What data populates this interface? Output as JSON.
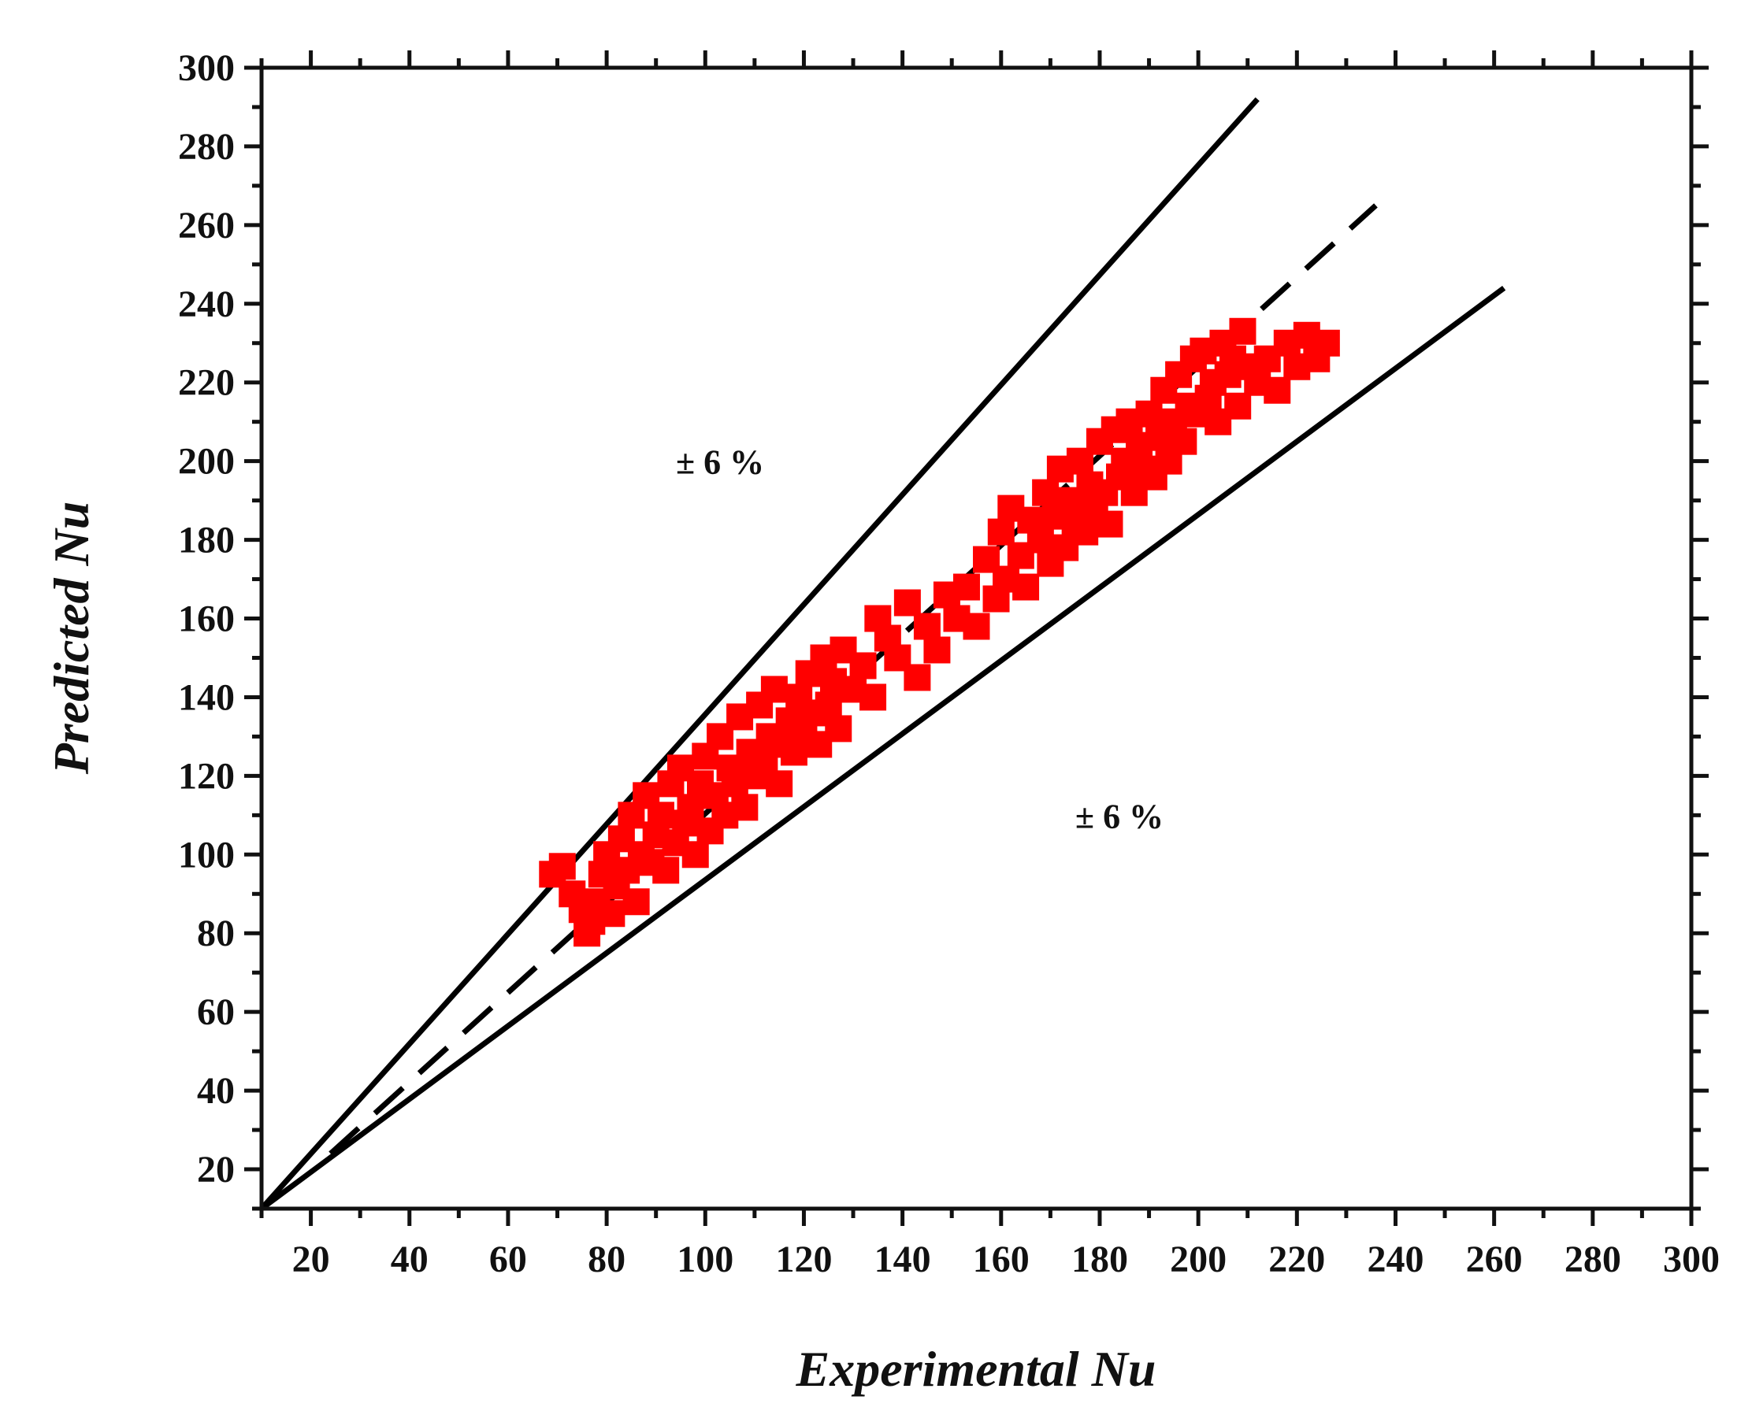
{
  "chart_data": {
    "type": "scatter",
    "title": "",
    "xlabel": "Experimental Nu",
    "ylabel": "Predicted Nu",
    "xlim": [
      10,
      300
    ],
    "ylim": [
      10,
      300
    ],
    "xticks": [
      20,
      40,
      60,
      80,
      100,
      120,
      140,
      160,
      180,
      200,
      220,
      240,
      260,
      280,
      300
    ],
    "yticks": [
      20,
      40,
      60,
      80,
      100,
      120,
      140,
      160,
      180,
      200,
      220,
      240,
      260,
      280,
      300
    ],
    "grid": false,
    "legend": "none",
    "marker": "square",
    "colors": {
      "points": "#ff0000",
      "lines": "#000000"
    },
    "reference_lines": [
      {
        "style": "dashed",
        "x": [
          24,
          236
        ],
        "y": [
          24,
          265
        ]
      },
      {
        "style": "solid",
        "x": [
          10,
          212
        ],
        "y": [
          10,
          292
        ]
      },
      {
        "style": "solid",
        "x": [
          10,
          262
        ],
        "y": [
          10,
          244
        ]
      }
    ],
    "annotations": [
      {
        "text": "± 6 %",
        "x": 103,
        "y": 200
      },
      {
        "text": "± 6 %",
        "x": 184,
        "y": 110
      }
    ],
    "points": [
      [
        69,
        95
      ],
      [
        71,
        97
      ],
      [
        73,
        90
      ],
      [
        75,
        86
      ],
      [
        76,
        80
      ],
      [
        77,
        83
      ],
      [
        78,
        88
      ],
      [
        79,
        95
      ],
      [
        80,
        100
      ],
      [
        81,
        85
      ],
      [
        82,
        92
      ],
      [
        83,
        104
      ],
      [
        84,
        96
      ],
      [
        85,
        110
      ],
      [
        86,
        88
      ],
      [
        87,
        100
      ],
      [
        88,
        115
      ],
      [
        89,
        98
      ],
      [
        90,
        105
      ],
      [
        91,
        110
      ],
      [
        92,
        96
      ],
      [
        93,
        118
      ],
      [
        94,
        103
      ],
      [
        95,
        122
      ],
      [
        96,
        108
      ],
      [
        97,
        112
      ],
      [
        98,
        100
      ],
      [
        99,
        118
      ],
      [
        100,
        125
      ],
      [
        101,
        106
      ],
      [
        102,
        115
      ],
      [
        103,
        130
      ],
      [
        104,
        110
      ],
      [
        105,
        122
      ],
      [
        106,
        118
      ],
      [
        107,
        135
      ],
      [
        108,
        112
      ],
      [
        109,
        126
      ],
      [
        110,
        120
      ],
      [
        111,
        138
      ],
      [
        112,
        124
      ],
      [
        113,
        130
      ],
      [
        114,
        142
      ],
      [
        115,
        118
      ],
      [
        116,
        128
      ],
      [
        117,
        134
      ],
      [
        118,
        126
      ],
      [
        119,
        140
      ],
      [
        120,
        132
      ],
      [
        121,
        146
      ],
      [
        122,
        136
      ],
      [
        123,
        128
      ],
      [
        124,
        150
      ],
      [
        125,
        138
      ],
      [
        126,
        144
      ],
      [
        127,
        132
      ],
      [
        128,
        152
      ],
      [
        130,
        142
      ],
      [
        132,
        148
      ],
      [
        134,
        140
      ],
      [
        135,
        160
      ],
      [
        137,
        155
      ],
      [
        139,
        150
      ],
      [
        141,
        164
      ],
      [
        143,
        145
      ],
      [
        145,
        158
      ],
      [
        147,
        152
      ],
      [
        149,
        166
      ],
      [
        151,
        160
      ],
      [
        153,
        168
      ],
      [
        155,
        158
      ],
      [
        157,
        175
      ],
      [
        159,
        165
      ],
      [
        160,
        182
      ],
      [
        161,
        170
      ],
      [
        162,
        188
      ],
      [
        164,
        176
      ],
      [
        165,
        168
      ],
      [
        166,
        185
      ],
      [
        168,
        180
      ],
      [
        169,
        192
      ],
      [
        170,
        174
      ],
      [
        171,
        186
      ],
      [
        172,
        198
      ],
      [
        173,
        178
      ],
      [
        174,
        190
      ],
      [
        175,
        184
      ],
      [
        176,
        200
      ],
      [
        177,
        182
      ],
      [
        178,
        194
      ],
      [
        179,
        188
      ],
      [
        180,
        205
      ],
      [
        181,
        192
      ],
      [
        182,
        184
      ],
      [
        183,
        208
      ],
      [
        184,
        196
      ],
      [
        185,
        200
      ],
      [
        186,
        210
      ],
      [
        187,
        192
      ],
      [
        188,
        204
      ],
      [
        189,
        198
      ],
      [
        190,
        212
      ],
      [
        191,
        196
      ],
      [
        192,
        206
      ],
      [
        193,
        218
      ],
      [
        194,
        200
      ],
      [
        195,
        210
      ],
      [
        196,
        222
      ],
      [
        197,
        205
      ],
      [
        198,
        214
      ],
      [
        199,
        226
      ],
      [
        200,
        212
      ],
      [
        201,
        228
      ],
      [
        202,
        216
      ],
      [
        203,
        220
      ],
      [
        204,
        210
      ],
      [
        205,
        230
      ],
      [
        206,
        222
      ],
      [
        207,
        226
      ],
      [
        208,
        214
      ],
      [
        209,
        233
      ],
      [
        210,
        224
      ],
      [
        212,
        220
      ],
      [
        214,
        226
      ],
      [
        216,
        218
      ],
      [
        218,
        230
      ],
      [
        220,
        224
      ],
      [
        222,
        232
      ],
      [
        224,
        226
      ],
      [
        226,
        230
      ]
    ]
  }
}
